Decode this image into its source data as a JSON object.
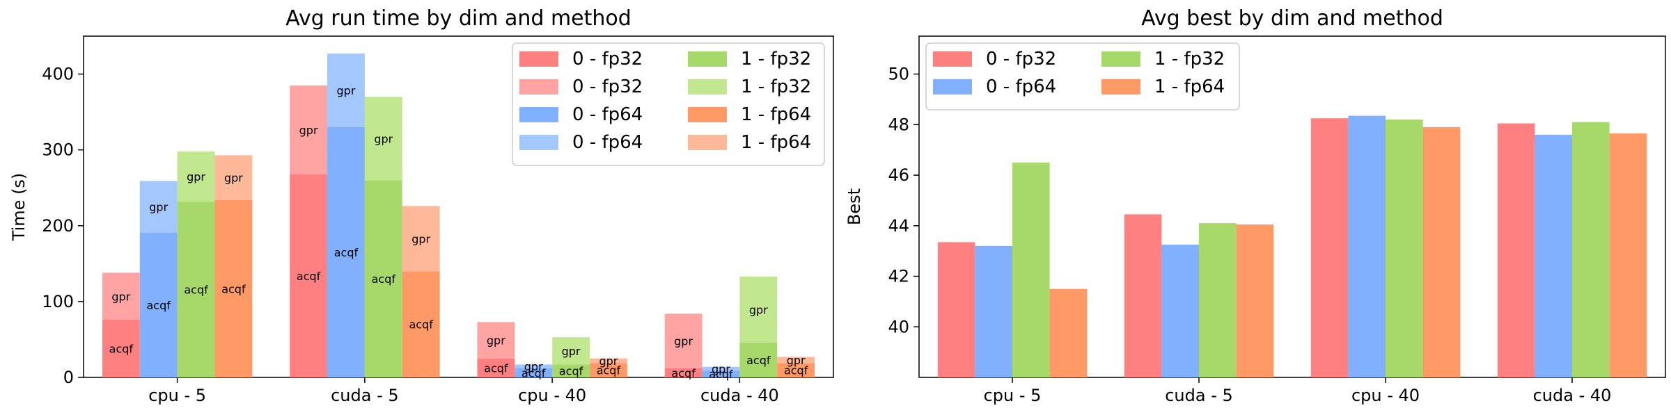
{
  "chart_data": [
    {
      "type": "bar",
      "stacked": true,
      "title": "Avg run time by dim and method",
      "xlabel": "",
      "ylabel": "Time (s)",
      "ylim": [
        0,
        450
      ],
      "yticks": [
        0,
        100,
        200,
        300,
        400
      ],
      "categories": [
        "cpu - 5",
        "cuda - 5",
        "cpu - 40",
        "cuda - 40"
      ],
      "segment_labels": [
        "acqf",
        "gpr"
      ],
      "legend_position": "top-right",
      "grid": false,
      "series": [
        {
          "name": "0 - fp32",
          "color": "#ff8080",
          "light": "#ffa3a3",
          "acqf": [
            76,
            268,
            25,
            12
          ],
          "total": [
            138,
            385,
            73,
            84
          ]
        },
        {
          "name": "0 - fp64",
          "color": "#80b0ff",
          "light": "#a3c8ff",
          "acqf": [
            191,
            330,
            12,
            9
          ],
          "total": [
            259,
            427,
            17,
            14
          ]
        },
        {
          "name": "1 - fp32",
          "color": "#a6d96a",
          "light": "#c2e88f",
          "acqf": [
            232,
            260,
            17,
            46
          ],
          "total": [
            298,
            370,
            53,
            133
          ]
        },
        {
          "name": "1 - fp64",
          "color": "#ff9966",
          "light": "#ffb898",
          "acqf": [
            234,
            140,
            19,
            19
          ],
          "total": [
            293,
            226,
            25,
            27
          ]
        }
      ],
      "legend_entries": [
        "0 - fp32",
        "0 - fp32",
        "0 - fp64",
        "0 - fp64",
        "1 - fp32",
        "1 - fp32",
        "1 - fp64",
        "1 - fp64"
      ]
    },
    {
      "type": "bar",
      "title": "Avg best by dim and method",
      "xlabel": "",
      "ylabel": "Best",
      "ylim": [
        38,
        51.5
      ],
      "yticks": [
        40,
        42,
        44,
        46,
        48,
        50
      ],
      "categories": [
        "cpu - 5",
        "cuda - 5",
        "cpu - 40",
        "cuda - 40"
      ],
      "legend_position": "top-left",
      "grid": false,
      "series": [
        {
          "name": "0 - fp32",
          "color": "#ff8080",
          "values": [
            43.35,
            44.45,
            48.25,
            48.05
          ]
        },
        {
          "name": "0 - fp64",
          "color": "#80b0ff",
          "values": [
            43.2,
            43.25,
            48.35,
            47.6
          ]
        },
        {
          "name": "1 - fp32",
          "color": "#a6d96a",
          "values": [
            46.5,
            44.1,
            48.2,
            48.1
          ]
        },
        {
          "name": "1 - fp64",
          "color": "#ff9966",
          "values": [
            41.5,
            44.05,
            47.9,
            47.65
          ]
        }
      ]
    }
  ]
}
